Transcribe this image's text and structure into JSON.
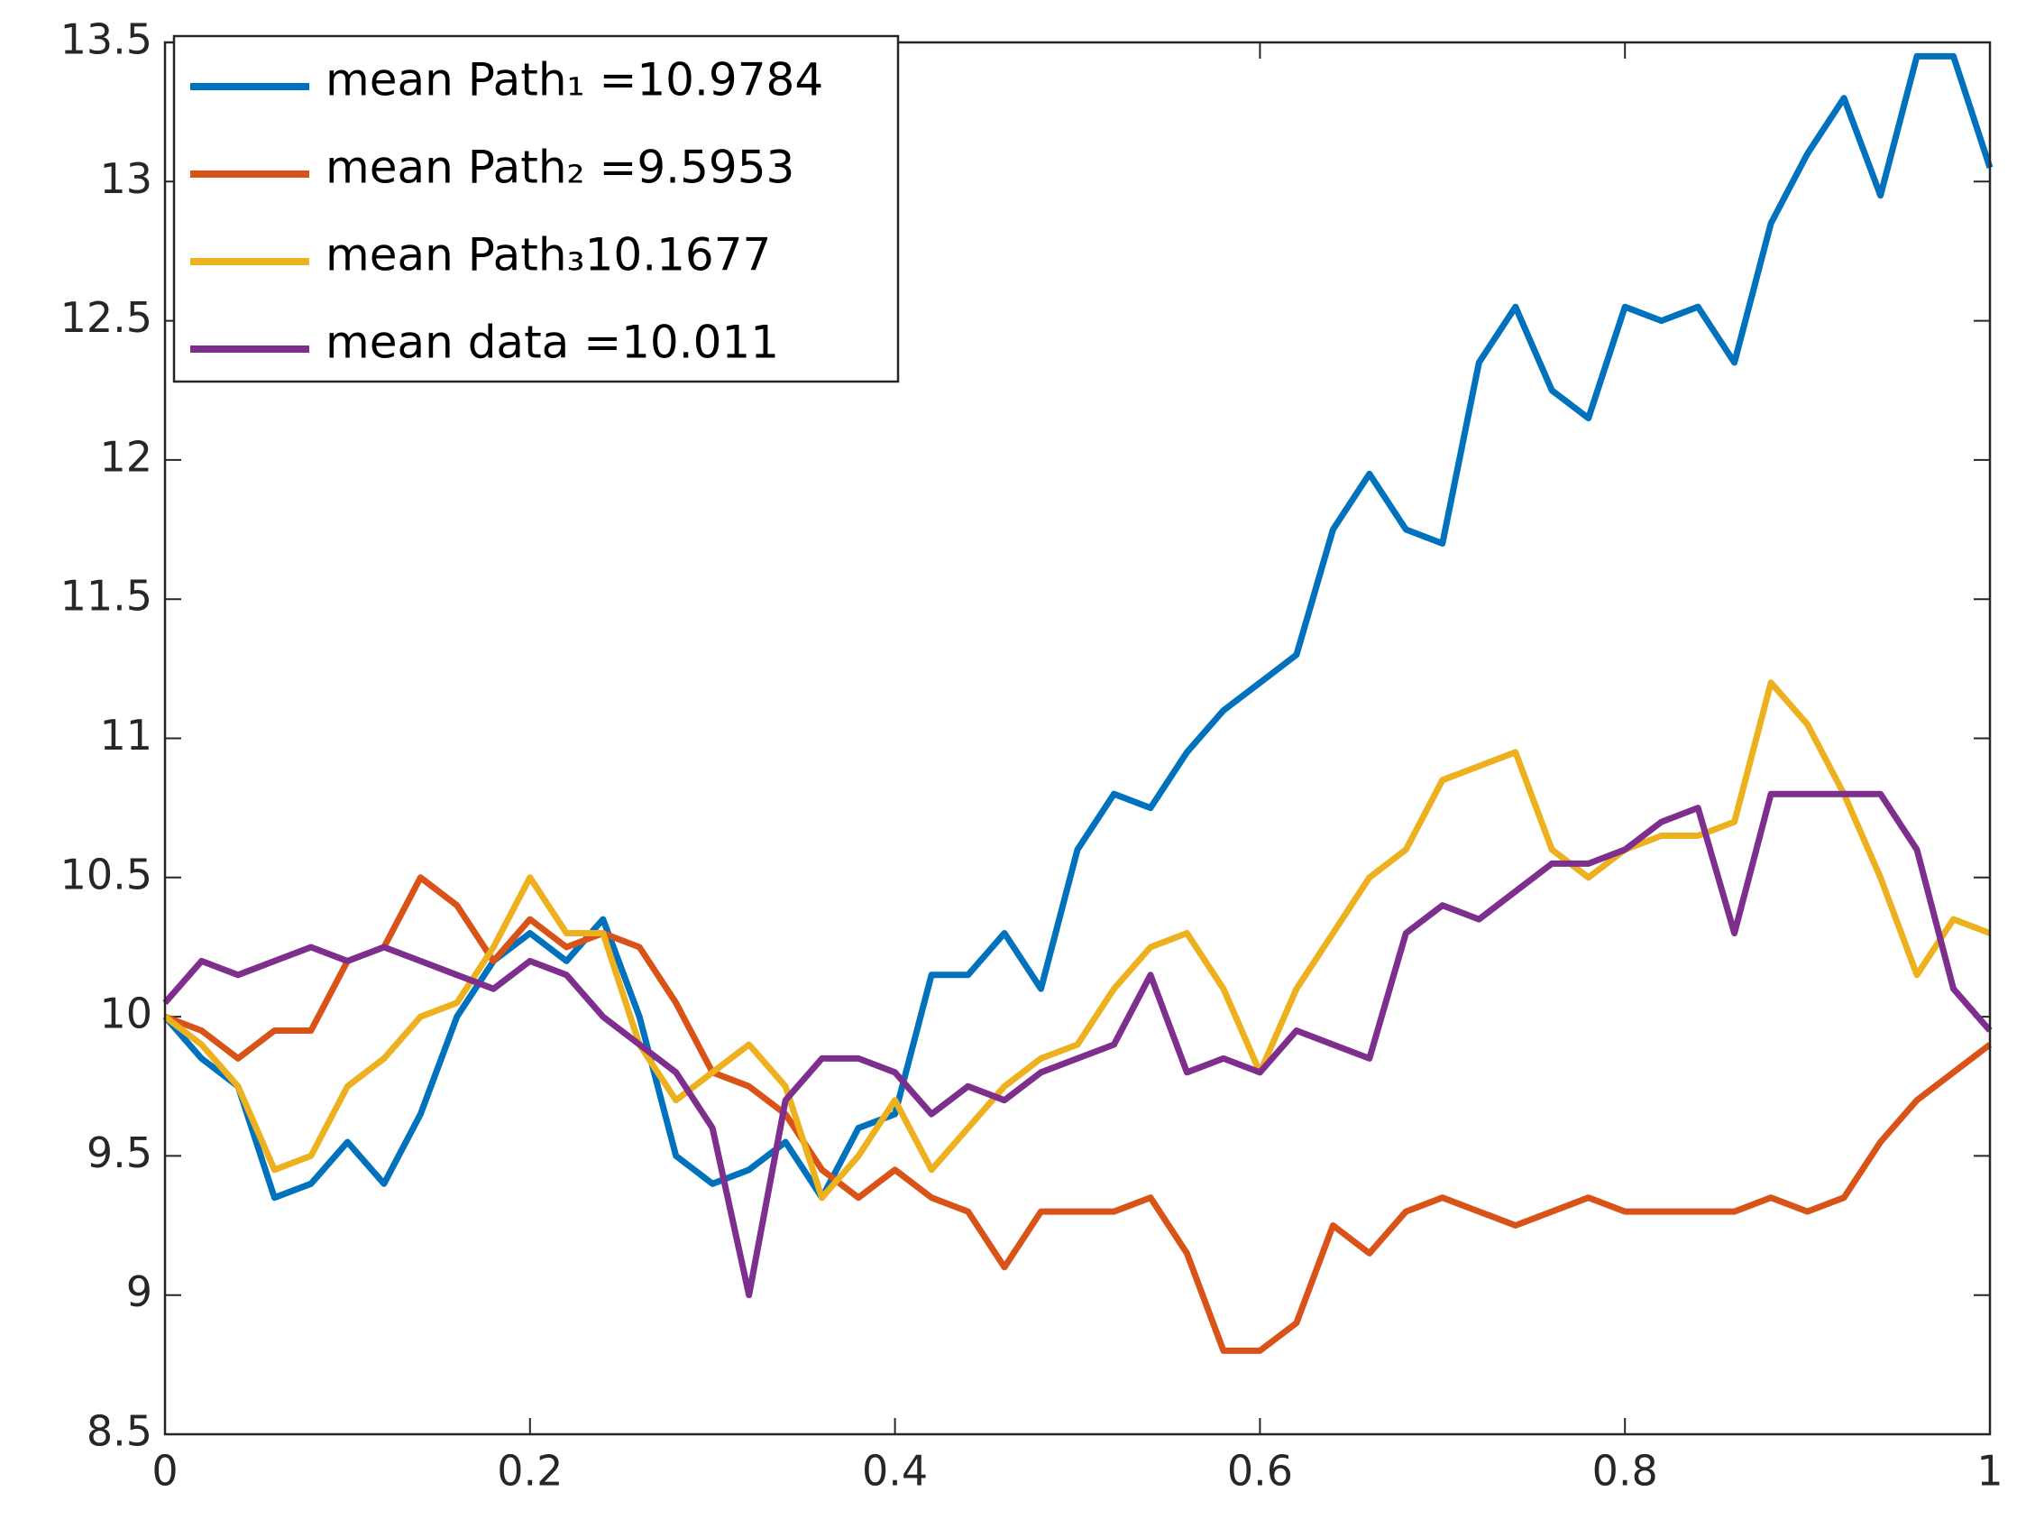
{
  "chart_data": {
    "type": "line",
    "x": [
      0,
      0.02,
      0.04,
      0.06,
      0.08,
      0.1,
      0.12,
      0.14,
      0.16,
      0.18,
      0.2,
      0.22,
      0.24,
      0.26,
      0.28,
      0.3,
      0.32,
      0.34,
      0.36,
      0.38,
      0.4,
      0.42,
      0.44,
      0.46,
      0.48,
      0.5,
      0.52,
      0.54,
      0.56,
      0.58,
      0.6,
      0.62,
      0.64,
      0.66,
      0.68,
      0.7,
      0.72,
      0.74,
      0.76,
      0.78,
      0.8,
      0.82,
      0.84,
      0.86,
      0.88,
      0.9,
      0.92,
      0.94,
      0.96,
      0.98,
      1
    ],
    "series": [
      {
        "name": "mean Path₁ =10.9784",
        "color": "#0072bd",
        "values": [
          10.0,
          9.85,
          9.75,
          9.35,
          9.4,
          9.55,
          9.4,
          9.65,
          10.0,
          10.2,
          10.3,
          10.2,
          10.35,
          10.0,
          9.5,
          9.4,
          9.45,
          9.55,
          9.35,
          9.6,
          9.65,
          10.15,
          10.15,
          10.3,
          10.1,
          10.6,
          10.8,
          10.75,
          10.95,
          11.1,
          11.2,
          11.3,
          11.75,
          11.95,
          11.75,
          11.7,
          12.35,
          12.55,
          12.25,
          12.15,
          12.55,
          12.5,
          12.55,
          12.35,
          12.85,
          13.1,
          13.3,
          12.95,
          13.45,
          13.45,
          13.05
        ]
      },
      {
        "name": "mean Path₂ =9.5953",
        "color": "#d95319",
        "values": [
          10.0,
          9.95,
          9.85,
          9.95,
          9.95,
          10.2,
          10.25,
          10.5,
          10.4,
          10.2,
          10.35,
          10.25,
          10.3,
          10.25,
          10.05,
          9.8,
          9.75,
          9.65,
          9.45,
          9.35,
          9.45,
          9.35,
          9.3,
          9.1,
          9.3,
          9.3,
          9.3,
          9.35,
          9.15,
          8.8,
          8.8,
          8.9,
          9.25,
          9.15,
          9.3,
          9.35,
          9.3,
          9.25,
          9.3,
          9.35,
          9.3,
          9.3,
          9.3,
          9.3,
          9.35,
          9.3,
          9.35,
          9.55,
          9.7,
          9.8,
          9.9
        ]
      },
      {
        "name": "mean Path₃10.1677",
        "color": "#edb120",
        "values": [
          10.0,
          9.9,
          9.75,
          9.45,
          9.5,
          9.75,
          9.85,
          10.0,
          10.05,
          10.25,
          10.5,
          10.3,
          10.3,
          9.9,
          9.7,
          9.8,
          9.9,
          9.75,
          9.35,
          9.5,
          9.7,
          9.45,
          9.6,
          9.75,
          9.85,
          9.9,
          10.1,
          10.25,
          10.3,
          10.1,
          9.8,
          10.1,
          10.3,
          10.5,
          10.6,
          10.85,
          10.9,
          10.95,
          10.6,
          10.5,
          10.6,
          10.65,
          10.65,
          10.7,
          11.2,
          11.05,
          10.8,
          10.5,
          10.15,
          10.35,
          10.3
        ]
      },
      {
        "name": "mean data =10.011",
        "color": "#7e2f8e",
        "values": [
          10.05,
          10.2,
          10.15,
          10.2,
          10.25,
          10.2,
          10.25,
          10.2,
          10.15,
          10.1,
          10.2,
          10.15,
          10.0,
          9.9,
          9.8,
          9.6,
          9.0,
          9.7,
          9.85,
          9.85,
          9.8,
          9.65,
          9.75,
          9.7,
          9.8,
          9.85,
          9.9,
          10.15,
          9.8,
          9.85,
          9.8,
          9.95,
          9.9,
          9.85,
          10.3,
          10.4,
          10.35,
          10.45,
          10.55,
          10.55,
          10.6,
          10.7,
          10.75,
          10.3,
          10.8,
          10.8,
          10.8,
          10.8,
          10.6,
          10.1,
          9.95
        ]
      }
    ],
    "xlim": [
      0,
      1
    ],
    "ylim": [
      8.5,
      13.5
    ],
    "xticks": [
      0,
      0.2,
      0.4,
      0.6,
      0.8,
      1
    ],
    "yticks": [
      8.5,
      9,
      9.5,
      10,
      10.5,
      11,
      11.5,
      12,
      12.5,
      13,
      13.5
    ],
    "legend": "upper-left"
  }
}
